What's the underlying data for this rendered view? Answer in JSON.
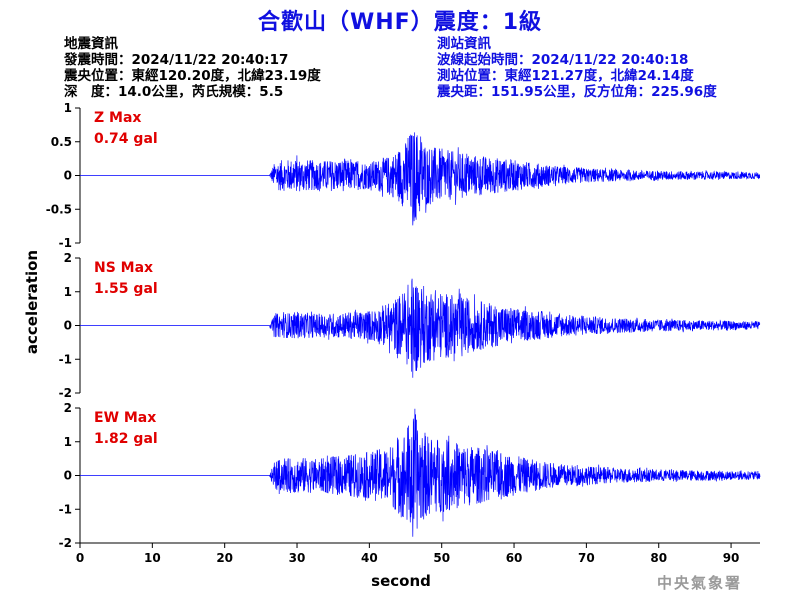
{
  "title": "合歡山（WHF）震度：1級",
  "earthquake_info": {
    "heading": "地震資訊",
    "origin_time": "發震時間：2024/11/22 20:40:17",
    "epicenter": "震央位置：東經120.20度，北緯23.19度",
    "depth_magnitude": "深　度：14.0公里，芮氏規模：5.5"
  },
  "station_info": {
    "heading": "測站資訊",
    "wave_start_time": "波線起始時間：2024/11/22 20:40:18",
    "station_location": "測站位置：東經121.27度，北緯24.14度",
    "distance_azimuth": "震央距：151.95公里，反方位角：225.96度"
  },
  "watermark": "中央氣象署",
  "colors": {
    "trace": "#0000ff",
    "title": "#1010e0",
    "max_label": "#e00000",
    "axis": "#000000"
  },
  "chart_data": {
    "type": "line",
    "xlabel": "second",
    "ylabel": "acceleration",
    "xlim": [
      0,
      94
    ],
    "x_ticks": [
      0,
      10,
      20,
      30,
      40,
      50,
      60,
      70,
      80,
      90
    ],
    "series": [
      {
        "name": "Z",
        "max_label": "Z Max",
        "max_value": "0.74 gal",
        "ylim": [
          -1,
          1
        ],
        "y_ticks": [
          1,
          0.5,
          0,
          -0.5,
          -1
        ],
        "y_tick_labels": [
          "1",
          "0.5",
          "0",
          "-0.5",
          "-1"
        ],
        "envelope": [
          [
            0,
            0
          ],
          [
            26.2,
            0.02
          ],
          [
            27,
            0.22
          ],
          [
            30,
            0.25
          ],
          [
            33,
            0.22
          ],
          [
            36,
            0.24
          ],
          [
            40,
            0.2
          ],
          [
            43,
            0.3
          ],
          [
            45,
            0.5
          ],
          [
            46,
            0.74
          ],
          [
            47,
            0.62
          ],
          [
            48,
            0.45
          ],
          [
            50,
            0.4
          ],
          [
            52,
            0.35
          ],
          [
            55,
            0.3
          ],
          [
            58,
            0.26
          ],
          [
            62,
            0.2
          ],
          [
            66,
            0.14
          ],
          [
            70,
            0.11
          ],
          [
            75,
            0.08
          ],
          [
            80,
            0.07
          ],
          [
            94,
            0.05
          ]
        ]
      },
      {
        "name": "NS",
        "max_label": "NS Max",
        "max_value": "1.55 gal",
        "ylim": [
          -2,
          2
        ],
        "y_ticks": [
          2,
          1,
          0,
          -1,
          -2
        ],
        "y_tick_labels": [
          "2",
          "1",
          "0",
          "-1",
          "-2"
        ],
        "envelope": [
          [
            0,
            0
          ],
          [
            26.2,
            0.03
          ],
          [
            27,
            0.35
          ],
          [
            30,
            0.4
          ],
          [
            33,
            0.35
          ],
          [
            36,
            0.38
          ],
          [
            40,
            0.45
          ],
          [
            43,
            0.7
          ],
          [
            45,
            1.1
          ],
          [
            46,
            1.55
          ],
          [
            47,
            1.3
          ],
          [
            48,
            1.1
          ],
          [
            50,
            1.0
          ],
          [
            52,
            0.9
          ],
          [
            55,
            0.75
          ],
          [
            58,
            0.6
          ],
          [
            62,
            0.45
          ],
          [
            66,
            0.35
          ],
          [
            70,
            0.28
          ],
          [
            75,
            0.22
          ],
          [
            80,
            0.18
          ],
          [
            94,
            0.12
          ]
        ]
      },
      {
        "name": "EW",
        "max_label": "EW Max",
        "max_value": "1.82 gal",
        "ylim": [
          -2,
          2
        ],
        "y_ticks": [
          2,
          1,
          0,
          -1,
          -2
        ],
        "y_tick_labels": [
          "2",
          "1",
          "0",
          "-1",
          "-2"
        ],
        "envelope": [
          [
            0,
            0
          ],
          [
            26.2,
            0.03
          ],
          [
            27,
            0.45
          ],
          [
            30,
            0.55
          ],
          [
            33,
            0.5
          ],
          [
            36,
            0.6
          ],
          [
            40,
            0.7
          ],
          [
            43,
            0.9
          ],
          [
            45,
            1.4
          ],
          [
            46,
            1.82
          ],
          [
            47,
            1.5
          ],
          [
            48,
            1.2
          ],
          [
            50,
            1.1
          ],
          [
            52,
            1.0
          ],
          [
            55,
            0.85
          ],
          [
            58,
            0.7
          ],
          [
            62,
            0.5
          ],
          [
            66,
            0.35
          ],
          [
            70,
            0.28
          ],
          [
            75,
            0.22
          ],
          [
            80,
            0.18
          ],
          [
            94,
            0.12
          ]
        ]
      }
    ]
  }
}
